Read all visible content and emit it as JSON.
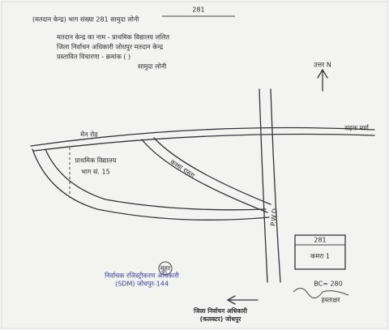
{
  "header": {
    "number": "281",
    "lines": [
      "(मतदान केन्द्र) भाग संख्या 281 सामुदा लोनी",
      "मतदान केन्द्र का नाम - प्राथमिक विद्यालय ललित",
      "जिला निर्वाचन अधिकारी जोधपुर मतदान केन्द्र",
      "प्रस्तावित विचारणा - क्रमांक (        )",
      "सामुदा लोनी"
    ]
  },
  "map": {
    "north": "उत्तर N",
    "labels": [
      "मेन रोड",
      "सड़क मार्ग",
      "प्राथमिक विद्यालय",
      "भाग सं. 15",
      "कच्चा रास्ता",
      "P.W.D"
    ]
  },
  "box": {
    "number": "281",
    "label": "कमरा 1"
  },
  "seal": "मुहर",
  "stamp": [
    "निर्वाचक रजिस्ट्रीकरण अधिकारी",
    "(SDM) जोधपुर-144"
  ],
  "signature": {
    "note": "BC= 280",
    "name": "हस्ताक्षर"
  },
  "footer": [
    "जिला निर्वाचन अधिकारी",
    "(कलक्टर) जोधपुर"
  ]
}
